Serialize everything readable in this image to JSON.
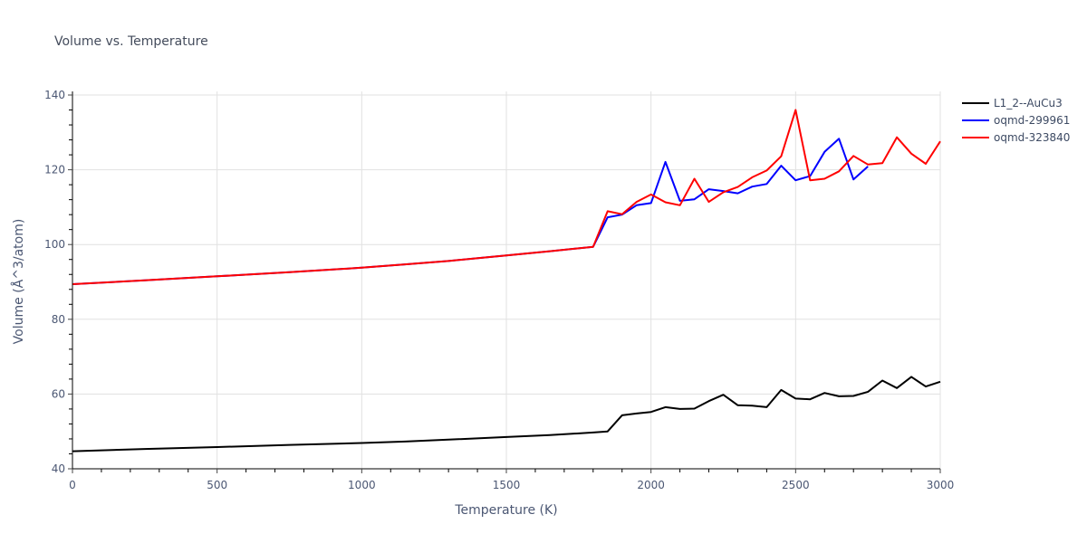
{
  "chart_data": {
    "type": "line",
    "title": "Volume vs. Temperature",
    "xlabel": "Temperature (K)",
    "ylabel": "Volume (Å^3/atom)",
    "xlim": [
      0,
      3000
    ],
    "ylim": [
      40,
      141
    ],
    "xticks": [
      0,
      500,
      1000,
      1500,
      2000,
      2500,
      3000
    ],
    "xtick_labels": [
      "0",
      "500",
      "1000",
      "1500",
      "2000",
      "2500",
      "3000"
    ],
    "yticks": [
      40,
      60,
      80,
      100,
      120,
      140
    ],
    "ytick_labels": [
      "40",
      "60",
      "80",
      "100",
      "120",
      "140"
    ],
    "grid": true,
    "legend_position": "top-right",
    "series": [
      {
        "name": "L1_2--AuCu3",
        "color": "#000000",
        "x": [
          0,
          250,
          500,
          750,
          1000,
          1150,
          1300,
          1500,
          1650,
          1800,
          1850,
          1900,
          1950,
          2000,
          2050,
          2100,
          2150,
          2200,
          2250,
          2300,
          2350,
          2400,
          2450,
          2500,
          2550,
          2600,
          2650,
          2700,
          2750,
          2800,
          2850,
          2900,
          2950,
          3000
        ],
        "y": [
          44.7,
          45.3,
          45.8,
          46.4,
          46.9,
          47.3,
          47.8,
          48.5,
          49.0,
          49.7,
          50.0,
          54.3,
          54.8,
          55.2,
          56.5,
          56.0,
          56.1,
          58.1,
          59.8,
          57.0,
          56.9,
          56.5,
          61.1,
          58.8,
          58.6,
          60.3,
          59.4,
          59.5,
          60.6,
          63.6,
          61.6,
          64.6,
          62.0,
          63.3
        ]
      },
      {
        "name": "oqmd-299961",
        "color": "#0000ff",
        "x": [
          0,
          250,
          500,
          750,
          1000,
          1150,
          1300,
          1500,
          1650,
          1800,
          1850,
          1900,
          1950,
          2000,
          2050,
          2100,
          2150,
          2200,
          2250,
          2300,
          2350,
          2400,
          2450,
          2500,
          2550,
          2600,
          2650,
          2700,
          2750
        ],
        "y": [
          89.4,
          90.4,
          91.5,
          92.6,
          93.8,
          94.7,
          95.6,
          97.1,
          98.2,
          99.4,
          107.3,
          108.0,
          110.5,
          111.1,
          122.1,
          111.7,
          112.1,
          114.8,
          114.3,
          113.7,
          115.5,
          116.2,
          121.1,
          117.2,
          118.3,
          124.8,
          128.3,
          117.4,
          120.9
        ]
      },
      {
        "name": "oqmd-323840",
        "color": "#ff0000",
        "x": [
          0,
          250,
          500,
          750,
          1000,
          1150,
          1300,
          1500,
          1650,
          1800,
          1850,
          1900,
          1950,
          2000,
          2050,
          2100,
          2150,
          2200,
          2250,
          2300,
          2350,
          2400,
          2450,
          2500,
          2550,
          2600,
          2650,
          2700,
          2750,
          2800,
          2850,
          2900,
          2950,
          3000
        ],
        "y": [
          89.4,
          90.4,
          91.5,
          92.6,
          93.8,
          94.7,
          95.6,
          97.1,
          98.2,
          99.4,
          108.9,
          108.1,
          111.4,
          113.4,
          111.3,
          110.5,
          117.6,
          111.4,
          114.0,
          115.4,
          118.0,
          119.8,
          123.6,
          136.0,
          117.2,
          117.6,
          119.6,
          123.7,
          121.4,
          121.8,
          128.7,
          124.3,
          121.6,
          127.6
        ]
      }
    ]
  }
}
